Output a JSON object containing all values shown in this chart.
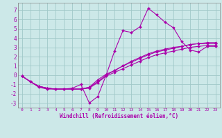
{
  "xlabel": "Windchill (Refroidissement éolien,°C)",
  "ylabel": "",
  "bg_color": "#cce8e8",
  "grid_color": "#a0c8c8",
  "line_color": "#aa00aa",
  "tick_color": "#aa00aa",
  "xlim": [
    -0.5,
    23.5
  ],
  "ylim": [
    -3.5,
    7.8
  ],
  "xticks": [
    0,
    1,
    2,
    3,
    4,
    5,
    6,
    7,
    8,
    9,
    10,
    11,
    12,
    13,
    14,
    15,
    16,
    17,
    18,
    19,
    20,
    21,
    22,
    23
  ],
  "yticks": [
    -3,
    -2,
    -1,
    0,
    1,
    2,
    3,
    4,
    5,
    6,
    7
  ],
  "series": [
    {
      "x": [
        0,
        1,
        2,
        3,
        4,
        5,
        6,
        7,
        8,
        9,
        10,
        11,
        12,
        13,
        14,
        15,
        16,
        17,
        18,
        19,
        20,
        21,
        22,
        23
      ],
      "y": [
        -0.1,
        -0.7,
        -1.3,
        -1.5,
        -1.5,
        -1.5,
        -1.4,
        -1.0,
        -3.0,
        -2.3,
        0.0,
        2.6,
        4.8,
        4.6,
        5.2,
        7.2,
        6.5,
        5.7,
        5.1,
        3.6,
        2.7,
        2.5,
        3.1,
        3.1
      ]
    },
    {
      "x": [
        0,
        1,
        2,
        3,
        4,
        5,
        6,
        7,
        8,
        9,
        10,
        11,
        12,
        13,
        14,
        15,
        16,
        17,
        18,
        19,
        20,
        21,
        22,
        23
      ],
      "y": [
        -0.1,
        -0.7,
        -1.2,
        -1.4,
        -1.5,
        -1.5,
        -1.5,
        -1.5,
        -1.3,
        -0.5,
        0.1,
        0.5,
        1.0,
        1.4,
        1.8,
        2.2,
        2.5,
        2.7,
        2.9,
        3.1,
        3.3,
        3.4,
        3.5,
        3.5
      ]
    },
    {
      "x": [
        0,
        1,
        2,
        3,
        4,
        5,
        6,
        7,
        8,
        9,
        10,
        11,
        12,
        13,
        14,
        15,
        16,
        17,
        18,
        19,
        20,
        21,
        22,
        23
      ],
      "y": [
        -0.1,
        -0.7,
        -1.2,
        -1.4,
        -1.5,
        -1.5,
        -1.5,
        -1.5,
        -1.4,
        -0.8,
        -0.1,
        0.3,
        0.7,
        1.1,
        1.5,
        1.9,
        2.2,
        2.4,
        2.6,
        2.8,
        3.0,
        3.1,
        3.2,
        3.2
      ]
    },
    {
      "x": [
        0,
        1,
        2,
        3,
        4,
        5,
        6,
        7,
        8,
        9,
        10,
        11,
        12,
        13,
        14,
        15,
        16,
        17,
        18,
        19,
        20,
        21,
        22,
        23
      ],
      "y": [
        -0.1,
        -0.7,
        -1.2,
        -1.4,
        -1.5,
        -1.5,
        -1.5,
        -1.5,
        -1.3,
        -0.7,
        0.0,
        0.5,
        1.0,
        1.5,
        1.9,
        2.3,
        2.6,
        2.8,
        3.0,
        3.1,
        3.3,
        3.4,
        3.4,
        3.4
      ]
    }
  ]
}
